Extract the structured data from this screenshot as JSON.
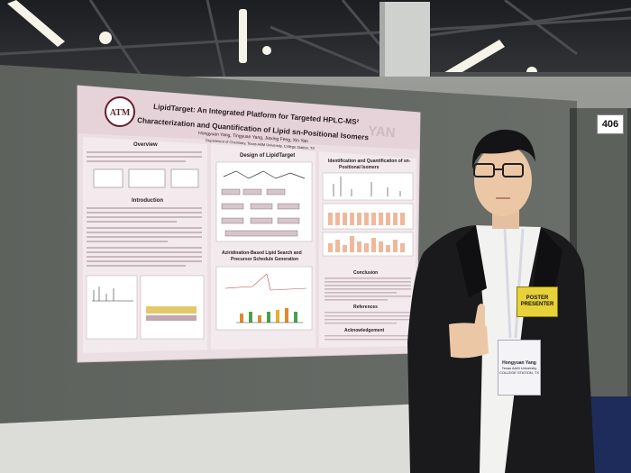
{
  "poster": {
    "title_line1": "LipidTarget: An Integrated Platform for Targeted HPLC-MS²",
    "title_line2": "Characterization and Quantification of Lipid sn-Positional Isomers",
    "authors": "Hongyuan Yang, Tingyuan Yang, Jiaxing Feng, Xin Yan",
    "affiliation": "Department of Chemistry, Texas A&M University, College Station, TX",
    "logo_text": "ATM",
    "lab_logo": "YAN",
    "sections": {
      "overview": "Overview",
      "introduction": "Introduction",
      "design": "Design of LipidTarget",
      "azirid": "Aziridination-Based Lipid Search and",
      "azirid2": "Precursor Schedule Generation",
      "ident": "Identification and Quantification of sn-",
      "ident2": "Positional Isomers",
      "conclusion": "Conclusion",
      "references": "References",
      "acknowledgement": "Acknowledgement"
    }
  },
  "board_number": "406",
  "badge": {
    "line1": "POSTER",
    "line2": "PRESENTER"
  },
  "nametag": {
    "name": "Hongyuan Yang",
    "org": "Texas A&M University",
    "loc": "COLLEGE STATION, TX"
  },
  "colors": {
    "poster_bg": "#ecdfe3",
    "accent": "#6b1d2f",
    "badge": "#e8d23a"
  }
}
